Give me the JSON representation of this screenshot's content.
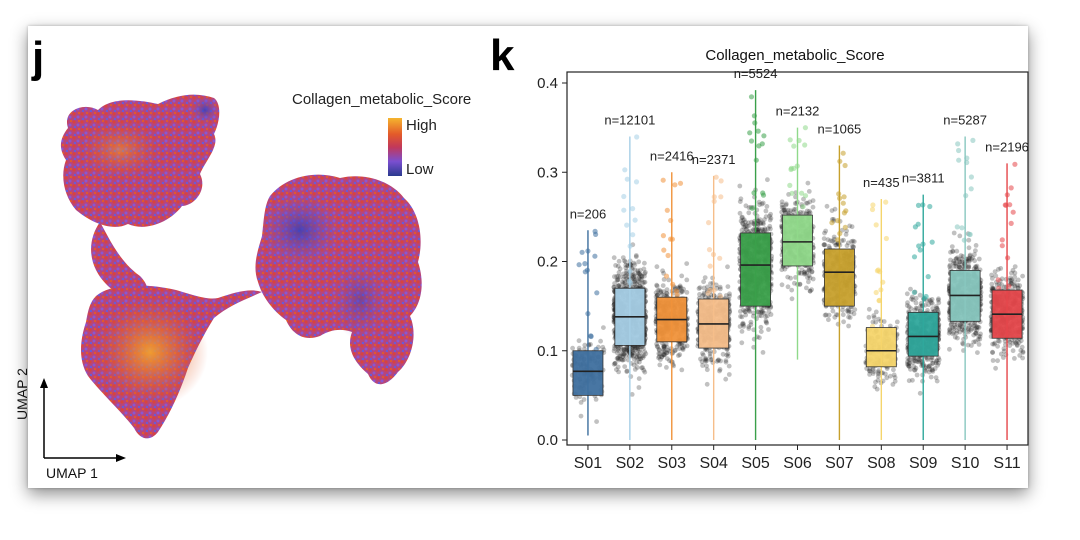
{
  "panel_j": {
    "letter": "j",
    "legend": {
      "title": "Collagen_metabolic_Score",
      "high": "High",
      "low": "Low",
      "colors": [
        "#f5b52e",
        "#e35a2a",
        "#c2385a",
        "#7a4fd0",
        "#2a3a8e"
      ]
    },
    "xlabel": "UMAP 1",
    "ylabel": "UMAP 2"
  },
  "panel_k": {
    "letter": "k"
  },
  "chart_data": {
    "type": "box",
    "title": "Collagen_metabolic_Score",
    "xlabel": "",
    "ylabel": "",
    "ylim": [
      0,
      0.4
    ],
    "yticks": [
      "0.0",
      "0.1",
      "0.2",
      "0.3",
      "0.4"
    ],
    "categories": [
      "S01",
      "S02",
      "S03",
      "S04",
      "S05",
      "S06",
      "S07",
      "S08",
      "S09",
      "S10",
      "S11"
    ],
    "counts": [
      "n=206",
      "n=12101",
      "n=2416",
      "n=2371",
      "n=5524",
      "n=2132",
      "n=1065",
      "n=435",
      "n=3811",
      "n=5287",
      "n=2196"
    ],
    "colors": [
      "#3e6f9e",
      "#a6cfe6",
      "#f0923a",
      "#f6be8a",
      "#3aa04a",
      "#90d98a",
      "#c7a02c",
      "#f5d56c",
      "#2fa89c",
      "#88c7bf",
      "#e5474b"
    ],
    "boxes": [
      {
        "q1": 0.05,
        "median": 0.077,
        "q3": 0.1,
        "wlo": 0.005,
        "whi": 0.235
      },
      {
        "q1": 0.106,
        "median": 0.138,
        "q3": 0.17,
        "wlo": 0.0,
        "whi": 0.34
      },
      {
        "q1": 0.11,
        "median": 0.135,
        "q3": 0.16,
        "wlo": 0.0,
        "whi": 0.3
      },
      {
        "q1": 0.103,
        "median": 0.13,
        "q3": 0.158,
        "wlo": 0.0,
        "whi": 0.296
      },
      {
        "q1": 0.15,
        "median": 0.196,
        "q3": 0.232,
        "wlo": 0.0,
        "whi": 0.392
      },
      {
        "q1": 0.195,
        "median": 0.222,
        "q3": 0.252,
        "wlo": 0.09,
        "whi": 0.35
      },
      {
        "q1": 0.15,
        "median": 0.188,
        "q3": 0.214,
        "wlo": 0.0,
        "whi": 0.33
      },
      {
        "q1": 0.082,
        "median": 0.1,
        "q3": 0.126,
        "wlo": 0.0,
        "whi": 0.27
      },
      {
        "q1": 0.094,
        "median": 0.116,
        "q3": 0.143,
        "wlo": 0.0,
        "whi": 0.275
      },
      {
        "q1": 0.133,
        "median": 0.162,
        "q3": 0.19,
        "wlo": 0.0,
        "whi": 0.34
      },
      {
        "q1": 0.114,
        "median": 0.141,
        "q3": 0.168,
        "wlo": 0.0,
        "whi": 0.31
      }
    ]
  }
}
